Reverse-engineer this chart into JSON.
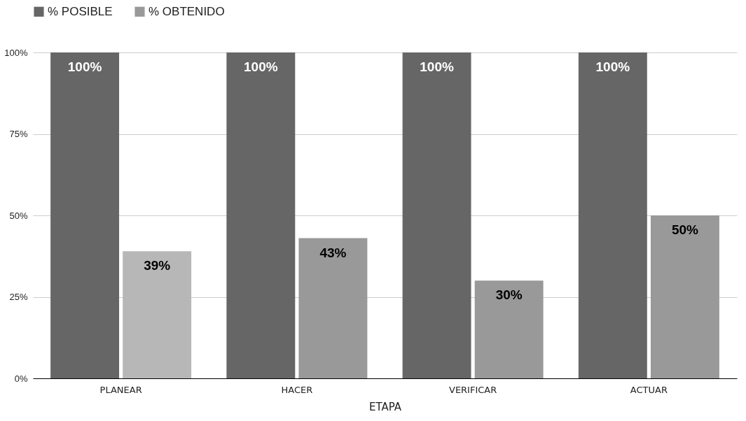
{
  "chart_data": {
    "type": "bar",
    "xlabel": "ETAPA",
    "categories": [
      "PLANEAR",
      "HACER",
      "VERIFICAR",
      "ACTUAR"
    ],
    "series": [
      {
        "name": "% POSIBLE",
        "color": "#666666",
        "values": [
          100,
          100,
          100,
          100
        ],
        "value_labels": [
          "100%",
          "100%",
          "100%",
          "100%"
        ]
      },
      {
        "name": "% OBTENIDO",
        "color": "#999999",
        "colors": [
          "#b7b7b7",
          "#999999",
          "#999999",
          "#999999"
        ],
        "values": [
          39,
          43,
          30,
          50
        ],
        "value_labels": [
          "39%",
          "43%",
          "30%",
          "50%"
        ]
      }
    ],
    "ylim": [
      0,
      100
    ],
    "yticks": [
      {
        "value": 0,
        "label": "0%"
      },
      {
        "value": 25,
        "label": "25%"
      },
      {
        "value": 50,
        "label": "50%"
      },
      {
        "value": 75,
        "label": "75%"
      },
      {
        "value": 100,
        "label": "100%"
      }
    ],
    "grid": "y",
    "legend": "top"
  }
}
